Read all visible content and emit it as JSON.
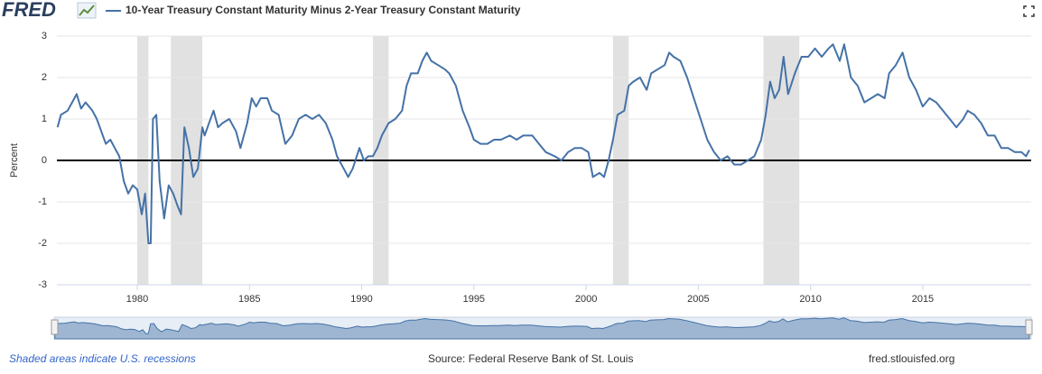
{
  "brand": "FRED",
  "chart_data": {
    "type": "line",
    "x": [
      1976.45,
      1976.6,
      1976.9,
      1977.1,
      1977.3,
      1977.5,
      1977.7,
      1978.0,
      1978.2,
      1978.4,
      1978.6,
      1978.8,
      1979.0,
      1979.2,
      1979.4,
      1979.6,
      1979.8,
      1980.0,
      1980.2,
      1980.35,
      1980.5,
      1980.6,
      1980.7,
      1980.85,
      1981.0,
      1981.2,
      1981.4,
      1981.6,
      1981.8,
      1981.95,
      1982.1,
      1982.3,
      1982.5,
      1982.7,
      1982.9,
      1983.0,
      1983.2,
      1983.4,
      1983.6,
      1983.8,
      1984.1,
      1984.4,
      1984.6,
      1984.9,
      1985.1,
      1985.3,
      1985.5,
      1985.8,
      1986.0,
      1986.3,
      1986.6,
      1986.9,
      1987.2,
      1987.5,
      1987.8,
      1988.1,
      1988.4,
      1988.7,
      1988.9,
      1989.2,
      1989.4,
      1989.6,
      1989.9,
      1990.1,
      1990.3,
      1990.5,
      1990.7,
      1990.9,
      1991.2,
      1991.5,
      1991.8,
      1992.0,
      1992.2,
      1992.5,
      1992.7,
      1992.9,
      1993.1,
      1993.4,
      1993.7,
      1993.9,
      1994.2,
      1994.5,
      1994.8,
      1995.0,
      1995.3,
      1995.6,
      1995.9,
      1996.2,
      1996.6,
      1996.9,
      1997.2,
      1997.6,
      1997.9,
      1998.2,
      1998.6,
      1998.9,
      1999.2,
      1999.5,
      1999.8,
      2000.1,
      2000.3,
      2000.6,
      2000.8,
      2001.0,
      2001.2,
      2001.4,
      2001.7,
      2001.9,
      2002.1,
      2002.4,
      2002.7,
      2002.9,
      2003.2,
      2003.5,
      2003.7,
      2003.9,
      2004.2,
      2004.5,
      2004.8,
      2005.1,
      2005.4,
      2005.7,
      2006.0,
      2006.3,
      2006.6,
      2006.9,
      2007.2,
      2007.5,
      2007.8,
      2008.0,
      2008.2,
      2008.4,
      2008.6,
      2008.8,
      2009.0,
      2009.3,
      2009.6,
      2009.9,
      2010.2,
      2010.5,
      2010.8,
      2011.0,
      2011.3,
      2011.5,
      2011.8,
      2012.1,
      2012.4,
      2012.7,
      2013.0,
      2013.3,
      2013.5,
      2013.8,
      2014.1,
      2014.4,
      2014.7,
      2015.0,
      2015.3,
      2015.6,
      2015.9,
      2016.2,
      2016.5,
      2016.8,
      2017.0,
      2017.3,
      2017.6,
      2017.9,
      2018.2,
      2018.5,
      2018.8,
      2019.1,
      2019.4,
      2019.6,
      2019.75
    ],
    "series": [
      {
        "name": "10-Year Treasury Constant Maturity Minus 2-Year Treasury Constant Maturity",
        "color": "#4572a7",
        "values": [
          0.8,
          1.1,
          1.2,
          1.4,
          1.6,
          1.25,
          1.4,
          1.2,
          1.0,
          0.7,
          0.4,
          0.5,
          0.3,
          0.1,
          -0.5,
          -0.8,
          -0.6,
          -0.7,
          -1.3,
          -0.8,
          -2.0,
          -2.0,
          1.0,
          1.1,
          -0.5,
          -1.4,
          -0.6,
          -0.8,
          -1.1,
          -1.3,
          0.8,
          0.3,
          -0.4,
          -0.2,
          0.8,
          0.6,
          0.9,
          1.2,
          0.8,
          0.9,
          1.0,
          0.7,
          0.3,
          0.9,
          1.5,
          1.3,
          1.5,
          1.5,
          1.2,
          1.1,
          0.4,
          0.6,
          1.0,
          1.1,
          1.0,
          1.1,
          0.9,
          0.5,
          0.1,
          -0.2,
          -0.4,
          -0.2,
          0.3,
          0.0,
          0.1,
          0.1,
          0.3,
          0.6,
          0.9,
          1.0,
          1.2,
          1.8,
          2.1,
          2.1,
          2.4,
          2.6,
          2.4,
          2.3,
          2.2,
          2.1,
          1.8,
          1.2,
          0.8,
          0.5,
          0.4,
          0.4,
          0.5,
          0.5,
          0.6,
          0.5,
          0.6,
          0.6,
          0.4,
          0.2,
          0.1,
          0.0,
          0.2,
          0.3,
          0.3,
          0.2,
          -0.4,
          -0.3,
          -0.4,
          0.0,
          0.5,
          1.1,
          1.2,
          1.8,
          1.9,
          2.0,
          1.7,
          2.1,
          2.2,
          2.3,
          2.6,
          2.5,
          2.4,
          2.0,
          1.5,
          1.0,
          0.5,
          0.2,
          0.0,
          0.1,
          -0.1,
          -0.1,
          0.0,
          0.1,
          0.5,
          1.1,
          1.9,
          1.5,
          1.7,
          2.5,
          1.6,
          2.1,
          2.5,
          2.5,
          2.7,
          2.5,
          2.7,
          2.8,
          2.4,
          2.8,
          2.0,
          1.8,
          1.4,
          1.5,
          1.6,
          1.5,
          2.1,
          2.3,
          2.6,
          2.0,
          1.7,
          1.3,
          1.5,
          1.4,
          1.2,
          1.0,
          0.8,
          1.0,
          1.2,
          1.1,
          0.9,
          0.6,
          0.6,
          0.3,
          0.3,
          0.2,
          0.2,
          0.1,
          0.25
        ]
      }
    ],
    "y_label": "Percent",
    "xlim": [
      1976.42,
      2019.83
    ],
    "xticks": [
      1980,
      1985,
      1990,
      1995,
      2000,
      2005,
      2010,
      2015
    ],
    "ylim": [
      -3,
      3
    ],
    "yticks": [
      -3,
      -2,
      -1,
      0,
      1,
      2,
      3
    ],
    "grid": true,
    "zero_line": true,
    "recessions": [
      [
        1980.0,
        1980.5
      ],
      [
        1981.5,
        1982.9
      ],
      [
        1990.5,
        1991.2
      ],
      [
        2001.2,
        2001.9
      ],
      [
        2007.9,
        2009.5
      ]
    ],
    "note": "Shaded areas indicate U.S. recessions",
    "source": "Source: Federal Reserve Bank of St. Louis",
    "url": "fred.stlouisfed.org"
  }
}
